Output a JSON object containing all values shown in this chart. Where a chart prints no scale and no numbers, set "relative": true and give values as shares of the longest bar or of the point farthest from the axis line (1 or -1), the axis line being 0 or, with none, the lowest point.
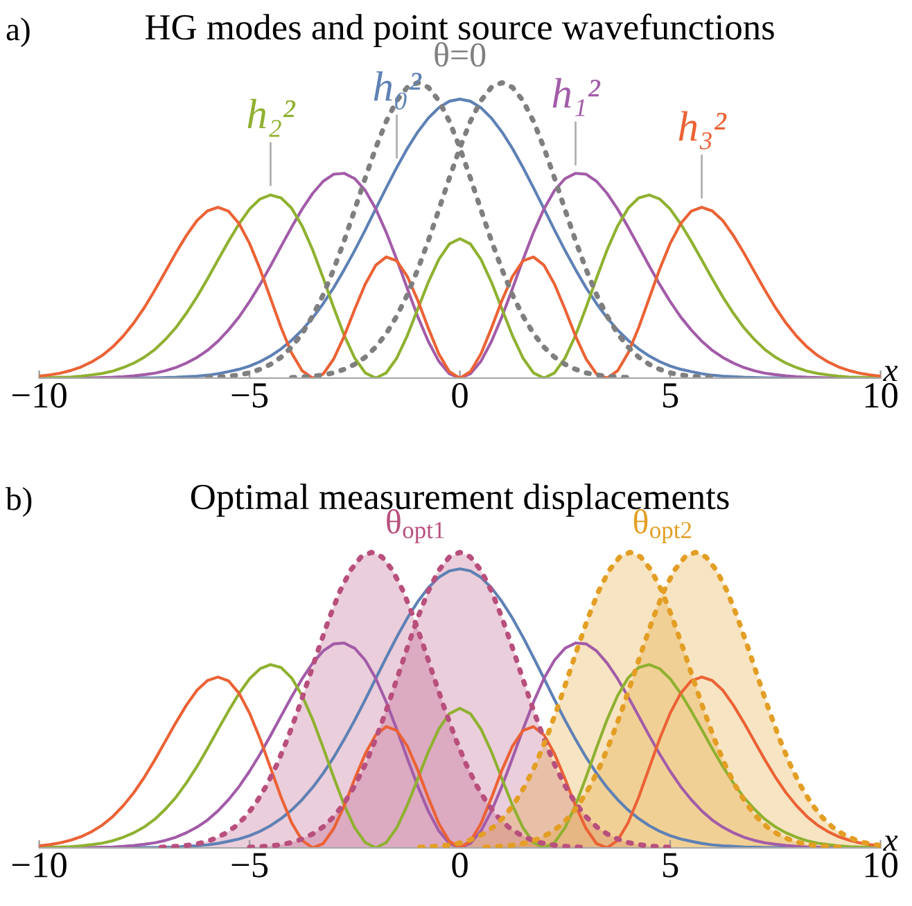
{
  "chart_data": [
    {
      "type": "line",
      "title": "HG modes and point source wavefunctions",
      "relative": true,
      "xlabel": "x",
      "xlim": [
        -10,
        10
      ],
      "xticks": [
        -10,
        -5,
        0,
        5,
        10
      ],
      "annotations": [
        "a)",
        {
          "text": "h₂²",
          "x": -4.5,
          "y": 0.62
        },
        {
          "text": "h₀²",
          "x": -1.5,
          "y": 0.713
        },
        {
          "text": "h₁²",
          "x": 2.75,
          "y": 0.69
        },
        {
          "text": "h₃²",
          "x": 5.75,
          "y": 0.578
        }
      ],
      "x": [
        -10,
        -9.75,
        -9.5,
        -9.25,
        -9,
        -8.75,
        -8.5,
        -8.25,
        -8,
        -7.75,
        -7.5,
        -7.25,
        -7,
        -6.75,
        -6.5,
        -6.25,
        -6,
        -5.75,
        -5.5,
        -5.25,
        -5,
        -4.75,
        -4.5,
        -4.25,
        -4,
        -3.75,
        -3.5,
        -3.25,
        -3,
        -2.75,
        -2.5,
        -2.25,
        -2,
        -1.75,
        -1.5,
        -1.25,
        -1,
        -0.75,
        -0.5,
        -0.25,
        0,
        0.25,
        0.5,
        0.75,
        1,
        1.25,
        1.5,
        1.75,
        2,
        2.25,
        2.5,
        2.75,
        3,
        3.25,
        3.5,
        3.75,
        4,
        4.25,
        4.5,
        4.75,
        5,
        5.25,
        5.5,
        5.75,
        6,
        6.25,
        6.5,
        6.75,
        7,
        7.25,
        7.5,
        7.75,
        8,
        8.25,
        8.5,
        8.75,
        9,
        9.25,
        9.5,
        9.75,
        10
      ],
      "series": [
        {
          "color": "#5e81b5",
          "values": [
            0,
            0,
            0,
            0,
            0,
            0,
            0,
            0,
            0,
            0.001,
            0.001,
            0.001,
            0.002,
            0.003,
            0.005,
            0.007,
            0.01,
            0.015,
            0.022,
            0.03,
            0.041,
            0.056,
            0.075,
            0.099,
            0.128,
            0.163,
            0.204,
            0.252,
            0.306,
            0.367,
            0.432,
            0.501,
            0.573,
            0.644,
            0.713,
            0.777,
            0.833,
            0.88,
            0.915,
            0.937,
            0.944,
            0.937,
            0.915,
            0.88,
            0.833,
            0.777,
            0.713,
            0.644,
            0.573,
            0.501,
            0.432,
            0.367,
            0.306,
            0.252,
            0.204,
            0.163,
            0.128,
            0.099,
            0.075,
            0.056,
            0.041,
            0.03,
            0.022,
            0.015,
            0.01,
            0.007,
            0.005,
            0.003,
            0.002,
            0.001,
            0.001,
            0.001,
            0,
            null,
            null,
            null,
            null,
            null,
            null,
            null,
            null
          ]
        },
        {
          "color": "#a25ca8",
          "values": [
            0,
            0,
            0,
            0,
            0.001,
            0.001,
            0.002,
            0.003,
            0.005,
            0.008,
            0.012,
            0.017,
            0.025,
            0.036,
            0.051,
            0.07,
            0.094,
            0.125,
            0.163,
            0.207,
            0.259,
            0.317,
            0.38,
            0.446,
            0.511,
            0.572,
            0.625,
            0.666,
            0.69,
            0.693,
            0.675,
            0.635,
            0.573,
            0.493,
            0.401,
            0.303,
            0.208,
            0.124,
            0.057,
            0.015,
            0,
            0.015,
            0.057,
            0.124,
            0.208,
            0.303,
            0.401,
            0.493,
            0.573,
            0.635,
            0.675,
            0.693,
            0.69,
            0.666,
            0.625,
            0.572,
            0.511,
            0.446,
            0.38,
            0.317,
            0.259,
            0.207,
            0.163,
            0.125,
            0.094,
            0.07,
            0.051,
            0.036,
            0.025,
            0.017,
            0.012,
            0.008,
            0.005,
            0.003,
            0.002,
            0.001,
            0.001,
            0,
            0,
            0,
            0
          ]
        },
        {
          "color": "#8fb131",
          "values": [
            0.001,
            0.002,
            0.003,
            0.004,
            0.007,
            0.011,
            0.016,
            0.024,
            0.036,
            0.051,
            0.071,
            0.097,
            0.131,
            0.171,
            0.22,
            0.275,
            0.336,
            0.4,
            0.463,
            0.522,
            0.572,
            0.606,
            0.62,
            0.61,
            0.575,
            0.515,
            0.434,
            0.339,
            0.239,
            0.145,
            0.068,
            0.018,
            0,
            0.018,
            0.068,
            0.144,
            0.234,
            0.325,
            0.402,
            0.454,
            0.472,
            0.454,
            0.402,
            0.325,
            0.234,
            0.144,
            0.068,
            0.018,
            0,
            0.018,
            0.068,
            0.145,
            0.239,
            0.339,
            0.434,
            0.515,
            0.575,
            0.61,
            0.62,
            0.606,
            0.572,
            0.522,
            0.463,
            0.4,
            0.336,
            0.275,
            0.22,
            0.171,
            0.131,
            0.097,
            0.071,
            0.051,
            0.036,
            0.024,
            0.016,
            0.011,
            0.007,
            0.004,
            0.003,
            0.002,
            0.001
          ]
        },
        {
          "color": "#eb6235",
          "values": [
            0.007,
            0.011,
            0.017,
            0.026,
            0.038,
            0.055,
            0.077,
            0.106,
            0.143,
            0.187,
            0.239,
            0.298,
            0.361,
            0.424,
            0.483,
            0.533,
            0.566,
            0.578,
            0.565,
            0.523,
            0.456,
            0.369,
            0.27,
            0.171,
            0.085,
            0.025,
            0,
            0.014,
            0.065,
            0.142,
            0.233,
            0.318,
            0.382,
            0.41,
            0.397,
            0.344,
            0.263,
            0.169,
            0.082,
            0.022,
            0,
            0.022,
            0.082,
            0.169,
            0.263,
            0.344,
            0.397,
            0.41,
            0.382,
            0.318,
            0.233,
            0.142,
            0.065,
            0.014,
            0,
            0.025,
            0.085,
            0.171,
            0.27,
            0.369,
            0.456,
            0.523,
            0.565,
            0.578,
            0.566,
            0.533,
            0.483,
            0.424,
            0.361,
            0.298,
            0.239,
            0.187,
            0.143,
            0.106,
            0.077,
            0.055,
            0.038,
            0.026,
            0.017,
            0.011,
            0.007
          ]
        },
        {
          "name": "θ=0",
          "color": "#7f7f7f",
          "line_style": "dotted",
          "x": [
            -6,
            -5.75,
            -5.5,
            -5.25,
            -5,
            -4.75,
            -4.5,
            -4.25,
            -4,
            -3.75,
            -3.5,
            -3.25,
            -3,
            -2.75,
            -2.5,
            -2.25,
            -2,
            -1.75,
            -1.5,
            -1.25,
            -1,
            -0.75,
            -0.5,
            -0.25,
            0,
            0.25,
            0.5,
            0.75,
            1,
            1.25,
            1.5,
            1.75,
            2,
            2.25,
            2.5,
            2.75,
            3,
            3.25,
            3.5,
            3.75,
            4
          ],
          "values": [
            0.002,
            0.004,
            0.006,
            0.011,
            0.018,
            0.03,
            0.047,
            0.071,
            0.105,
            0.151,
            0.21,
            0.282,
            0.368,
            0.465,
            0.57,
            0.677,
            0.779,
            0.869,
            0.939,
            0.984,
            1,
            0.984,
            0.939,
            0.869,
            0.779,
            0.677,
            0.57,
            0.465,
            0.368,
            0.282,
            0.21,
            0.151,
            0.105,
            0.071,
            0.047,
            0.03,
            0.018,
            0.011,
            0.006,
            0.004,
            0.002
          ]
        },
        {
          "color": "#7f7f7f",
          "line_style": "dotted",
          "x": [
            -4,
            -3.75,
            -3.5,
            -3.25,
            -3,
            -2.75,
            -2.5,
            -2.25,
            -2,
            -1.75,
            -1.5,
            -1.25,
            -1,
            -0.75,
            -0.5,
            -0.25,
            0,
            0.25,
            0.5,
            0.75,
            1,
            1.25,
            1.5,
            1.75,
            2,
            2.25,
            2.5,
            2.75,
            3,
            3.25,
            3.5,
            3.75,
            4,
            4.25,
            4.5,
            4.75,
            5,
            5.25,
            5.5,
            5.75,
            6
          ],
          "values": [
            0.002,
            0.004,
            0.006,
            0.011,
            0.018,
            0.03,
            0.047,
            0.071,
            0.105,
            0.151,
            0.21,
            0.282,
            0.368,
            0.465,
            0.57,
            0.677,
            0.779,
            0.869,
            0.939,
            0.984,
            1,
            0.984,
            0.939,
            0.869,
            0.779,
            0.677,
            0.57,
            0.465,
            0.368,
            0.282,
            0.21,
            0.151,
            0.105,
            0.071,
            0.047,
            0.03,
            0.018,
            0.011,
            0.006,
            0.004,
            0.002
          ]
        }
      ]
    },
    {
      "type": "line",
      "title": "Optimal measurement displacements",
      "relative": true,
      "xlabel": "x",
      "xlim": [
        -10,
        10
      ],
      "xticks": [
        -10,
        -5,
        0,
        5,
        10
      ],
      "annotations": [
        "b)"
      ],
      "x": [
        -10,
        -9.75,
        -9.5,
        -9.25,
        -9,
        -8.75,
        -8.5,
        -8.25,
        -8,
        -7.75,
        -7.5,
        -7.25,
        -7,
        -6.75,
        -6.5,
        -6.25,
        -6,
        -5.75,
        -5.5,
        -5.25,
        -5,
        -4.75,
        -4.5,
        -4.25,
        -4,
        -3.75,
        -3.5,
        -3.25,
        -3,
        -2.75,
        -2.5,
        -2.25,
        -2,
        -1.75,
        -1.5,
        -1.25,
        -1,
        -0.75,
        -0.5,
        -0.25,
        0,
        0.25,
        0.5,
        0.75,
        1,
        1.25,
        1.5,
        1.75,
        2,
        2.25,
        2.5,
        2.75,
        3,
        3.25,
        3.5,
        3.75,
        4,
        4.25,
        4.5,
        4.75,
        5,
        5.25,
        5.5,
        5.75,
        6,
        6.25,
        6.5,
        6.75,
        7,
        7.25,
        7.5,
        7.75,
        8,
        8.25,
        8.5,
        8.75,
        9,
        9.25,
        9.5,
        9.75,
        10
      ],
      "series": [
        {
          "color": "#5e81b5",
          "values": [
            0,
            0,
            0,
            0,
            0,
            0,
            0,
            0,
            0,
            0.001,
            0.001,
            0.001,
            0.002,
            0.003,
            0.005,
            0.007,
            0.01,
            0.015,
            0.022,
            0.03,
            0.041,
            0.056,
            0.075,
            0.099,
            0.128,
            0.163,
            0.204,
            0.252,
            0.306,
            0.367,
            0.432,
            0.501,
            0.573,
            0.644,
            0.713,
            0.777,
            0.833,
            0.88,
            0.915,
            0.937,
            0.944,
            0.937,
            0.915,
            0.88,
            0.833,
            0.777,
            0.713,
            0.644,
            0.573,
            0.501,
            0.432,
            0.367,
            0.306,
            0.252,
            0.204,
            0.163,
            0.128,
            0.099,
            0.075,
            0.056,
            0.041,
            0.03,
            0.022,
            0.015,
            0.01,
            0.007,
            0.005,
            0.003,
            0.002,
            0.001,
            0.001,
            0.001,
            0,
            null,
            null,
            null,
            null,
            null,
            null,
            null,
            null
          ]
        },
        {
          "color": "#a25ca8",
          "values": [
            0,
            0,
            0,
            0,
            0.001,
            0.001,
            0.002,
            0.003,
            0.005,
            0.008,
            0.012,
            0.017,
            0.025,
            0.036,
            0.051,
            0.07,
            0.094,
            0.125,
            0.163,
            0.207,
            0.259,
            0.317,
            0.38,
            0.446,
            0.511,
            0.572,
            0.625,
            0.666,
            0.69,
            0.693,
            0.675,
            0.635,
            0.573,
            0.493,
            0.401,
            0.303,
            0.208,
            0.124,
            0.057,
            0.015,
            0,
            0.015,
            0.057,
            0.124,
            0.208,
            0.303,
            0.401,
            0.493,
            0.573,
            0.635,
            0.675,
            0.693,
            0.69,
            0.666,
            0.625,
            0.572,
            0.511,
            0.446,
            0.38,
            0.317,
            0.259,
            0.207,
            0.163,
            0.125,
            0.094,
            0.07,
            0.051,
            0.036,
            0.025,
            0.017,
            0.012,
            0.008,
            0.005,
            0.003,
            0.002,
            0.001,
            0.001,
            0,
            0,
            0,
            0
          ]
        },
        {
          "color": "#8fb131",
          "values": [
            0.001,
            0.002,
            0.003,
            0.004,
            0.007,
            0.011,
            0.016,
            0.024,
            0.036,
            0.051,
            0.071,
            0.097,
            0.131,
            0.171,
            0.22,
            0.275,
            0.336,
            0.4,
            0.463,
            0.522,
            0.572,
            0.606,
            0.62,
            0.61,
            0.575,
            0.515,
            0.434,
            0.339,
            0.239,
            0.145,
            0.068,
            0.018,
            0,
            0.018,
            0.068,
            0.144,
            0.234,
            0.325,
            0.402,
            0.454,
            0.472,
            0.454,
            0.402,
            0.325,
            0.234,
            0.144,
            0.068,
            0.018,
            0,
            0.018,
            0.068,
            0.145,
            0.239,
            0.339,
            0.434,
            0.515,
            0.575,
            0.61,
            0.62,
            0.606,
            0.572,
            0.522,
            0.463,
            0.4,
            0.336,
            0.275,
            0.22,
            0.171,
            0.131,
            0.097,
            0.071,
            0.051,
            0.036,
            0.024,
            0.016,
            0.011,
            0.007,
            0.004,
            0.003,
            0.002,
            0.001
          ]
        },
        {
          "color": "#eb6235",
          "values": [
            0.007,
            0.011,
            0.017,
            0.026,
            0.038,
            0.055,
            0.077,
            0.106,
            0.143,
            0.187,
            0.239,
            0.298,
            0.361,
            0.424,
            0.483,
            0.533,
            0.566,
            0.578,
            0.565,
            0.523,
            0.456,
            0.369,
            0.27,
            0.171,
            0.085,
            0.025,
            0,
            0.014,
            0.065,
            0.142,
            0.233,
            0.318,
            0.382,
            0.41,
            0.397,
            0.344,
            0.263,
            0.169,
            0.082,
            0.022,
            0,
            0.022,
            0.082,
            0.169,
            0.263,
            0.344,
            0.397,
            0.41,
            0.382,
            0.318,
            0.233,
            0.142,
            0.065,
            0.014,
            0,
            0.025,
            0.085,
            0.171,
            0.27,
            0.369,
            0.456,
            0.523,
            0.565,
            0.578,
            0.566,
            0.533,
            0.483,
            0.424,
            0.361,
            0.298,
            0.239,
            0.187,
            0.143,
            0.106,
            0.077,
            0.055,
            0.038,
            0.026,
            0.017,
            0.011,
            0.007
          ]
        },
        {
          "type": "area",
          "name": "θ$_{opt1}$",
          "color": "#b84f7d",
          "line_style": "dotted",
          "x": [
            -7.1,
            -6.85,
            -6.6,
            -6.35,
            -6.1,
            -5.85,
            -5.6,
            -5.35,
            -5.1,
            -4.85,
            -4.6,
            -4.35,
            -4.1,
            -3.85,
            -3.6,
            -3.35,
            -3.1,
            -2.85,
            -2.6,
            -2.35,
            -2.1,
            -1.85,
            -1.6,
            -1.35,
            -1.1,
            -0.85,
            -0.6,
            -0.35,
            -0.1,
            0.15,
            0.4,
            0.65,
            0.9,
            1.15,
            1.4,
            1.65,
            1.9,
            2.15,
            2.4,
            2.65,
            2.9
          ],
          "values": [
            0.002,
            0.004,
            0.006,
            0.011,
            0.018,
            0.03,
            0.047,
            0.071,
            0.105,
            0.151,
            0.21,
            0.282,
            0.368,
            0.465,
            0.57,
            0.677,
            0.779,
            0.869,
            0.939,
            0.984,
            1,
            0.984,
            0.939,
            0.869,
            0.779,
            0.677,
            0.57,
            0.465,
            0.368,
            0.282,
            0.21,
            0.151,
            0.105,
            0.071,
            0.047,
            0.03,
            0.018,
            0.011,
            0.006,
            0.004,
            0.002
          ]
        },
        {
          "type": "area",
          "color": "#b84f7d",
          "line_style": "dotted",
          "x": [
            -5,
            -4.75,
            -4.5,
            -4.25,
            -4,
            -3.75,
            -3.5,
            -3.25,
            -3,
            -2.75,
            -2.5,
            -2.25,
            -2,
            -1.75,
            -1.5,
            -1.25,
            -1,
            -0.75,
            -0.5,
            -0.25,
            0,
            0.25,
            0.5,
            0.75,
            1,
            1.25,
            1.5,
            1.75,
            2,
            2.25,
            2.5,
            2.75,
            3,
            3.25,
            3.5,
            3.75,
            4,
            4.25,
            4.5,
            4.75,
            5
          ],
          "values": [
            0.002,
            0.004,
            0.006,
            0.011,
            0.018,
            0.03,
            0.047,
            0.071,
            0.105,
            0.151,
            0.21,
            0.282,
            0.368,
            0.465,
            0.57,
            0.677,
            0.779,
            0.869,
            0.939,
            0.984,
            1,
            0.984,
            0.939,
            0.869,
            0.779,
            0.677,
            0.57,
            0.465,
            0.368,
            0.282,
            0.21,
            0.151,
            0.105,
            0.071,
            0.047,
            0.03,
            0.018,
            0.011,
            0.006,
            0.004,
            0.002
          ]
        },
        {
          "type": "area",
          "name": "θ$_{opt2}$",
          "color": "#e39e24",
          "line_style": "dotted",
          "x": [
            -0.95,
            -0.7,
            -0.45,
            -0.2,
            0.05,
            0.3,
            0.55,
            0.8,
            1.05,
            1.3,
            1.55,
            1.8,
            2.05,
            2.3,
            2.55,
            2.8,
            3.05,
            3.3,
            3.55,
            3.8,
            4.05,
            4.3,
            4.55,
            4.8,
            5.05,
            5.3,
            5.55,
            5.8,
            6.05,
            6.3,
            6.55,
            6.8,
            7.05,
            7.3,
            7.55,
            7.8,
            8.05,
            8.3,
            8.55,
            8.8,
            9.05
          ],
          "values": [
            0.002,
            0.004,
            0.006,
            0.011,
            0.018,
            0.03,
            0.047,
            0.071,
            0.105,
            0.151,
            0.21,
            0.282,
            0.368,
            0.465,
            0.57,
            0.677,
            0.779,
            0.869,
            0.939,
            0.984,
            1,
            0.984,
            0.939,
            0.869,
            0.779,
            0.677,
            0.57,
            0.465,
            0.368,
            0.282,
            0.21,
            0.151,
            0.105,
            0.071,
            0.047,
            0.03,
            0.018,
            0.011,
            0.006,
            0.004,
            0.002
          ]
        },
        {
          "type": "area",
          "color": "#e39e24",
          "line_style": "dotted",
          "x": [
            0.6,
            0.85,
            1.1,
            1.35,
            1.6,
            1.85,
            2.1,
            2.35,
            2.6,
            2.85,
            3.1,
            3.35,
            3.6,
            3.85,
            4.1,
            4.35,
            4.6,
            4.85,
            5.1,
            5.35,
            5.6,
            5.85,
            6.1,
            6.35,
            6.6,
            6.85,
            7.1,
            7.35,
            7.6,
            7.85,
            8.1,
            8.35,
            8.6,
            8.85,
            9.1,
            9.35,
            9.6,
            9.85,
            10
          ],
          "values": [
            0.002,
            0.004,
            0.006,
            0.011,
            0.018,
            0.03,
            0.047,
            0.071,
            0.105,
            0.151,
            0.21,
            0.282,
            0.368,
            0.465,
            0.57,
            0.677,
            0.779,
            0.869,
            0.939,
            0.984,
            1,
            0.984,
            0.939,
            0.869,
            0.779,
            0.677,
            0.57,
            0.465,
            0.368,
            0.282,
            0.21,
            0.151,
            0.105,
            0.071,
            0.047,
            0.03,
            0.018,
            0.011,
            0.008
          ]
        }
      ]
    }
  ]
}
